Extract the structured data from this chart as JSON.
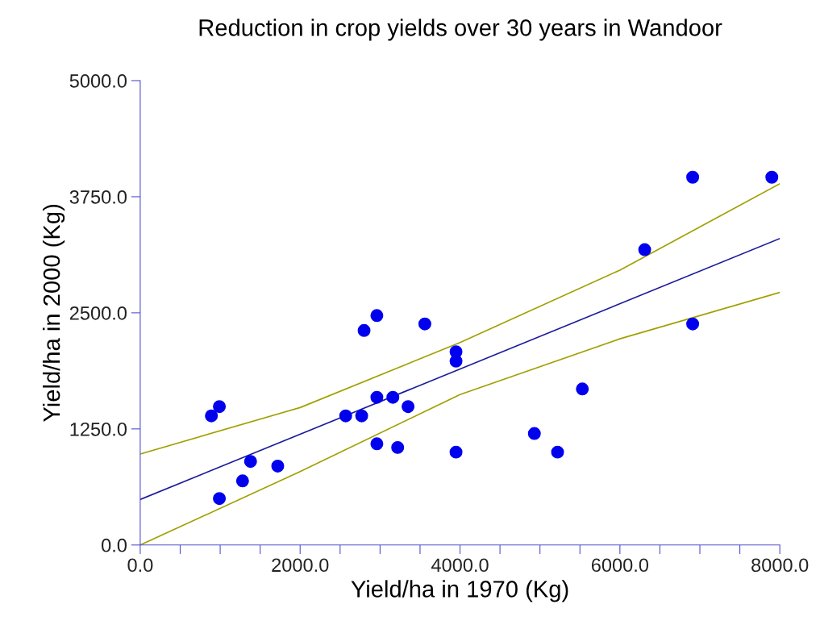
{
  "chart_data": {
    "type": "scatter",
    "title": "Reduction in crop yields over 30 years in Wandoor",
    "xlabel": "Yield/ha in 1970 (Kg)",
    "ylabel": "Yield/ha in 2000 (Kg)",
    "xlim": [
      0,
      8000
    ],
    "ylim": [
      0,
      5000
    ],
    "xticks": [
      {
        "value": 0,
        "label": "0.0"
      },
      {
        "value": 500,
        "label": null
      },
      {
        "value": 1000,
        "label": null
      },
      {
        "value": 1500,
        "label": null
      },
      {
        "value": 2000,
        "label": "2000.0"
      },
      {
        "value": 2500,
        "label": null
      },
      {
        "value": 3000,
        "label": null
      },
      {
        "value": 3500,
        "label": null
      },
      {
        "value": 4000,
        "label": "4000.0"
      },
      {
        "value": 4500,
        "label": null
      },
      {
        "value": 5000,
        "label": null
      },
      {
        "value": 5500,
        "label": null
      },
      {
        "value": 6000,
        "label": "6000.0"
      },
      {
        "value": 6500,
        "label": null
      },
      {
        "value": 7000,
        "label": null
      },
      {
        "value": 7500,
        "label": null
      },
      {
        "value": 8000,
        "label": "8000.0"
      }
    ],
    "yticks": [
      {
        "value": 0,
        "label": "0.0"
      },
      {
        "value": 1250,
        "label": "1250.0"
      },
      {
        "value": 2500,
        "label": "2500.0"
      },
      {
        "value": 3750,
        "label": "3750.0"
      },
      {
        "value": 5000,
        "label": "5000.0"
      }
    ],
    "grid": false,
    "legend": false,
    "series": [
      {
        "color": "#0000ee",
        "marker": "circle",
        "x": [
          890,
          990,
          990,
          1280,
          1380,
          1720,
          2570,
          2770,
          2800,
          2960,
          2960,
          2960,
          3160,
          3220,
          3350,
          3560,
          3950,
          3950,
          3950,
          4930,
          5220,
          5530,
          6310,
          6910,
          6910,
          7900
        ],
        "values": [
          1390,
          1490,
          500,
          690,
          900,
          850,
          1390,
          1390,
          2310,
          2470,
          1590,
          1090,
          1590,
          1050,
          1490,
          2380,
          2080,
          1980,
          1000,
          1200,
          1000,
          1680,
          3180,
          3960,
          2380,
          3960
        ]
      },
      {
        "type": "line",
        "color": "#1c1c9c",
        "marker": "none",
        "x": [
          0,
          8000
        ],
        "values": [
          490,
          3300
        ]
      },
      {
        "type": "line",
        "color": "#a0a000",
        "marker": "none",
        "x": [
          0,
          2000,
          4000,
          6000,
          8000
        ],
        "values": [
          980,
          1480,
          2180,
          2960,
          3890
        ]
      },
      {
        "type": "line",
        "color": "#a0a000",
        "marker": "none",
        "x": [
          0,
          2000,
          4000,
          6000,
          8000
        ],
        "values": [
          0,
          790,
          1620,
          2220,
          2720
        ]
      }
    ]
  }
}
